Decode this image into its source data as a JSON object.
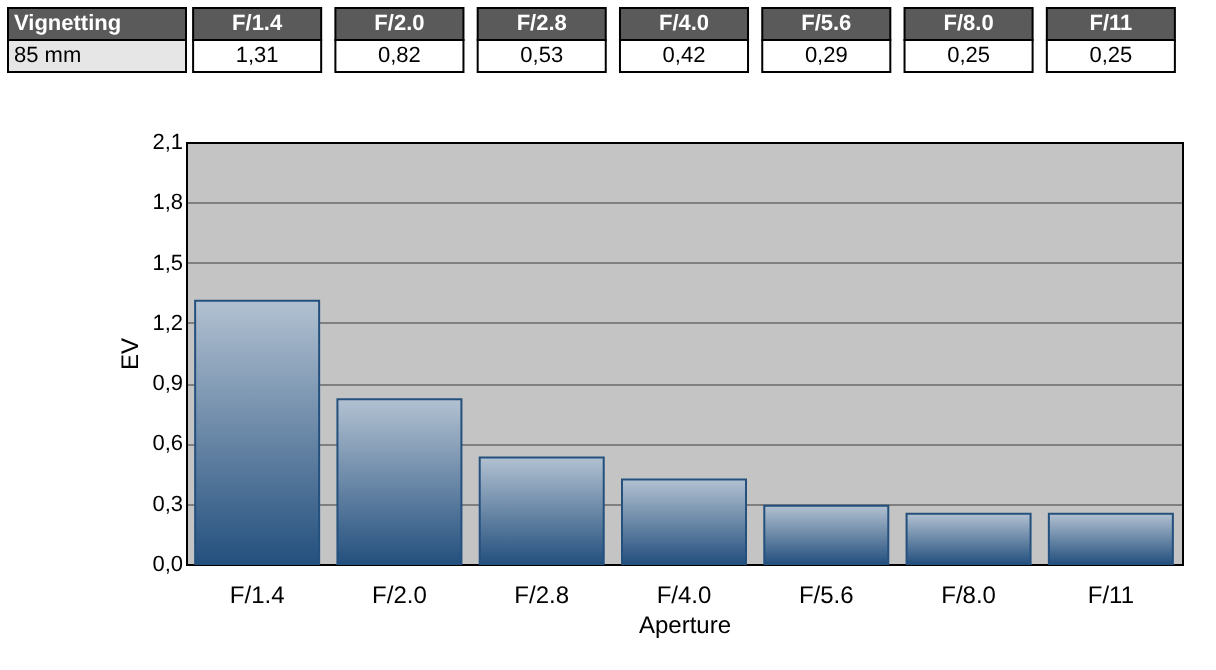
{
  "chart_data": {
    "type": "bar",
    "xlabel": "Aperture",
    "ylabel": "EV",
    "categories": [
      "F/1.4",
      "F/2.0",
      "F/2.8",
      "F/4.0",
      "F/5.6",
      "F/8.0",
      "F/11"
    ],
    "values": [
      1.31,
      0.82,
      0.53,
      0.42,
      0.29,
      0.25,
      0.25
    ],
    "value_labels": [
      "1,31",
      "0,82",
      "0,53",
      "0,42",
      "0,29",
      "0,25",
      "0,25"
    ],
    "color": "#24507e",
    "ylim": [
      0,
      2.1
    ],
    "yticks": [
      {
        "value": 0,
        "label": "0,0"
      },
      {
        "value": 0.3,
        "label": "0,3"
      },
      {
        "value": 0.6,
        "label": "0,6"
      },
      {
        "value": 0.9,
        "label": "0,9"
      },
      {
        "value": 1.2,
        "label": "1,2"
      },
      {
        "value": 1.5,
        "label": "1,5"
      },
      {
        "value": 1.8,
        "label": "1,8"
      },
      {
        "value": 2.1,
        "label": "2,1"
      }
    ],
    "grid": "y",
    "annotations": [
      "Vignetting",
      "85 mm"
    ]
  }
}
